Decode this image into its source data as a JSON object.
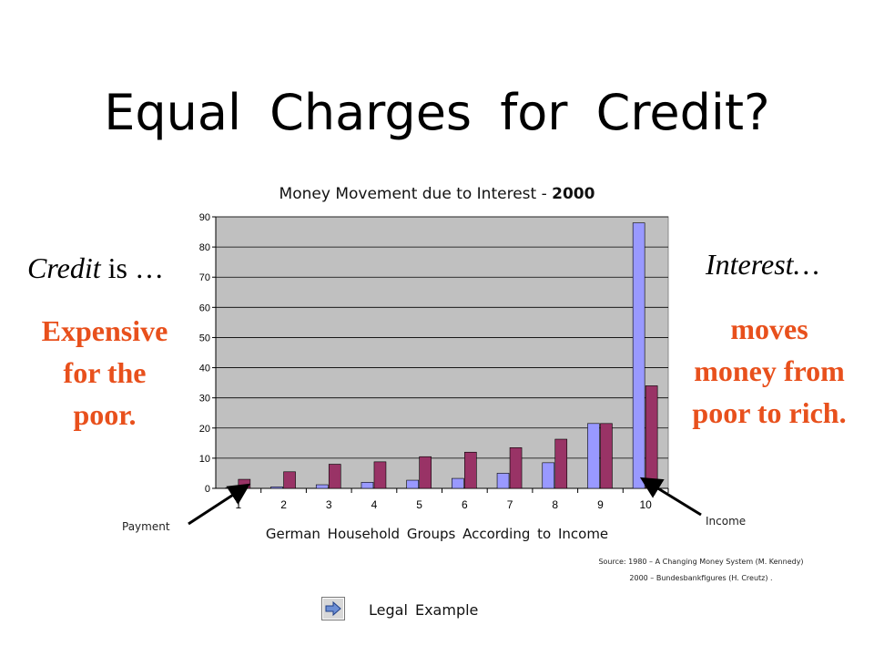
{
  "slide": {
    "title": "Equal  Charges  for  Credit?",
    "credit_heading_italic": "Credit",
    "credit_heading_rest": " is …",
    "credit_body_lines": [
      "Expensive",
      "for the",
      "poor."
    ],
    "interest_heading": "Interest…",
    "interest_body_lines": [
      "moves",
      "money from",
      "poor to rich."
    ],
    "payment_label": "Payment",
    "income_label": "Income",
    "source_line_1": "Source:  1980  –  A  Changing  Money  System  (M.  Kennedy)",
    "source_line_2": "2000  –  Bundesbankfigures  (H.  Creutz) .",
    "legal_link": "Legal  Example",
    "legal_icon": "arrow-right-icon"
  },
  "chart_data": {
    "type": "bar",
    "title_prefix": "Money Movement due to Interest - ",
    "title_year": "2000",
    "xlabel": "German  Household  Groups  According  to  Income",
    "ylabel": "",
    "ylim": [
      0,
      90
    ],
    "yticks": [
      0,
      10,
      20,
      30,
      40,
      50,
      60,
      70,
      80,
      90
    ],
    "categories": [
      "1",
      "2",
      "3",
      "4",
      "5",
      "6",
      "7",
      "8",
      "9",
      "10"
    ],
    "series": [
      {
        "values": [
          0.2,
          0.5,
          1.2,
          2.0,
          2.7,
          3.3,
          5.0,
          8.5,
          21.5,
          88
        ],
        "color": "#9999ff"
      },
      {
        "values": [
          3.0,
          5.5,
          8.0,
          8.8,
          10.5,
          12.0,
          13.5,
          16.3,
          21.5,
          34
        ],
        "color": "#993366"
      }
    ],
    "grid": "horizontal",
    "plot_background": "#c0c0c0"
  }
}
